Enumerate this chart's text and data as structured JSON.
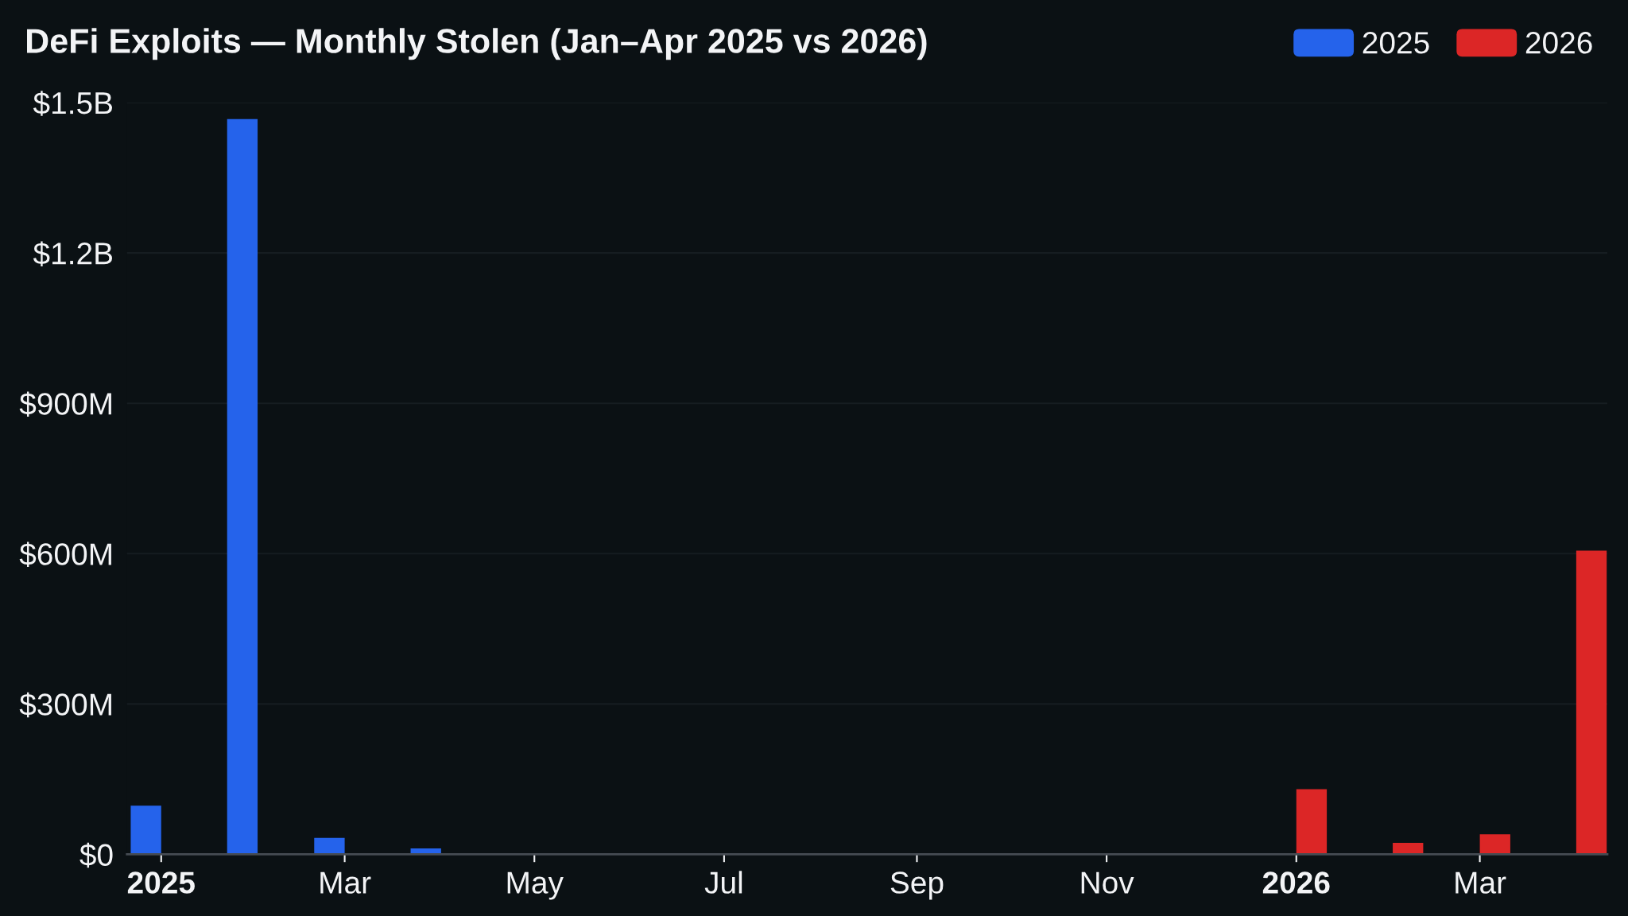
{
  "chart_data": {
    "type": "bar",
    "title": "DeFi Exploits — Monthly Stolen (Jan–Apr 2025 vs 2026)",
    "series": [
      {
        "name": "2025",
        "color": "#2563eb",
        "x": [
          "2025-01",
          "2025-02",
          "2025-03",
          "2025-04"
        ],
        "values": [
          97000000,
          1467000000,
          33000000,
          12000000
        ]
      },
      {
        "name": "2026",
        "color": "#dc2626",
        "x": [
          "2026-01",
          "2026-02",
          "2026-03",
          "2026-04"
        ],
        "values": [
          130000000,
          23000000,
          40000000,
          606000000
        ]
      }
    ],
    "xlim": [
      "2024-12-21",
      "2026-04-11"
    ],
    "xticks": [
      {
        "value": "2025-01",
        "label": "2025"
      },
      {
        "value": "2025-03",
        "label": "Mar"
      },
      {
        "value": "2025-05",
        "label": "May"
      },
      {
        "value": "2025-07",
        "label": "Jul"
      },
      {
        "value": "2025-09",
        "label": "Sep"
      },
      {
        "value": "2025-11",
        "label": "Nov"
      },
      {
        "value": "2026-01",
        "label": "2026"
      },
      {
        "value": "2026-03",
        "label": "Mar"
      }
    ],
    "ylim": [
      0,
      1500000000
    ],
    "yticks": [
      {
        "value": 0,
        "label": "$0"
      },
      {
        "value": 300000000,
        "label": "$300M"
      },
      {
        "value": 600000000,
        "label": "$600M"
      },
      {
        "value": 900000000,
        "label": "$900M"
      },
      {
        "value": 1200000000,
        "label": "$1.2B"
      },
      {
        "value": 1500000000,
        "label": "$1.5B"
      }
    ],
    "grid": "y",
    "legend": "top right"
  }
}
